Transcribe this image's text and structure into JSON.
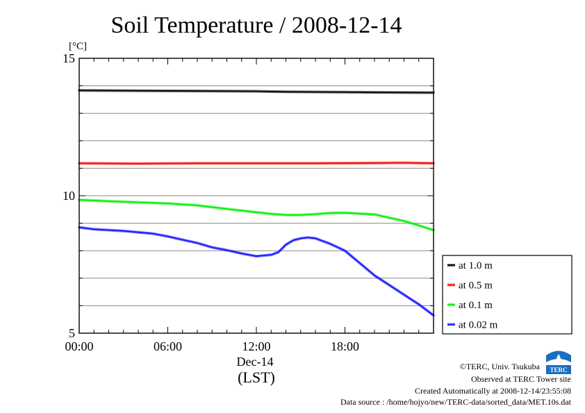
{
  "chart_data": {
    "type": "line",
    "title": "Soil Temperature / 2008-12-14",
    "ylabel": "[°C]",
    "xlabel_date": "Dec-14",
    "xlabel_tz": "(LST)",
    "x_range_hours": [
      0,
      24
    ],
    "ylim": [
      5,
      15
    ],
    "y_ticks": [
      {
        "value": 5,
        "label": "5"
      },
      {
        "value": 10,
        "label": "10"
      },
      {
        "value": 15,
        "label": "15"
      }
    ],
    "y_grid": [
      6,
      7,
      8,
      9,
      11,
      12,
      13,
      14
    ],
    "x_ticks": [
      {
        "hour": 0,
        "label": "00:00"
      },
      {
        "hour": 6,
        "label": "06:00"
      },
      {
        "hour": 12,
        "label": "12:00"
      },
      {
        "hour": 18,
        "label": "18:00"
      }
    ],
    "grid": true,
    "legend_position": "right",
    "series": [
      {
        "name": "at 1.0 m",
        "color": "#000000",
        "points": [
          [
            0,
            13.83
          ],
          [
            4,
            13.82
          ],
          [
            8,
            13.81
          ],
          [
            12,
            13.8
          ],
          [
            14,
            13.78
          ],
          [
            18,
            13.77
          ],
          [
            20,
            13.76
          ],
          [
            24,
            13.75
          ]
        ]
      },
      {
        "name": "at 0.5 m",
        "color": "#ff0000",
        "points": [
          [
            0,
            11.18
          ],
          [
            4,
            11.17
          ],
          [
            8,
            11.18
          ],
          [
            12,
            11.18
          ],
          [
            16,
            11.18
          ],
          [
            20,
            11.19
          ],
          [
            22,
            11.2
          ],
          [
            24,
            11.18
          ]
        ]
      },
      {
        "name": "at 0.1 m",
        "color": "#00ee00",
        "points": [
          [
            0,
            9.85
          ],
          [
            2,
            9.8
          ],
          [
            4,
            9.76
          ],
          [
            6,
            9.72
          ],
          [
            8,
            9.65
          ],
          [
            10,
            9.52
          ],
          [
            12,
            9.4
          ],
          [
            13,
            9.34
          ],
          [
            14,
            9.3
          ],
          [
            15,
            9.3
          ],
          [
            16,
            9.33
          ],
          [
            17,
            9.37
          ],
          [
            18,
            9.38
          ],
          [
            20,
            9.32
          ],
          [
            21,
            9.2
          ],
          [
            22,
            9.08
          ],
          [
            23,
            8.92
          ],
          [
            24,
            8.75
          ]
        ]
      },
      {
        "name": "at 0.02 m",
        "color": "#1010ff",
        "points": [
          [
            0,
            8.85
          ],
          [
            1,
            8.78
          ],
          [
            2,
            8.75
          ],
          [
            3,
            8.72
          ],
          [
            5,
            8.62
          ],
          [
            6,
            8.52
          ],
          [
            7,
            8.4
          ],
          [
            8,
            8.28
          ],
          [
            9,
            8.12
          ],
          [
            10,
            8.02
          ],
          [
            11,
            7.9
          ],
          [
            12,
            7.8
          ],
          [
            13,
            7.85
          ],
          [
            13.5,
            7.95
          ],
          [
            14,
            8.22
          ],
          [
            14.5,
            8.38
          ],
          [
            15,
            8.45
          ],
          [
            15.5,
            8.48
          ],
          [
            16,
            8.45
          ],
          [
            17,
            8.25
          ],
          [
            18,
            8.0
          ],
          [
            19,
            7.55
          ],
          [
            20,
            7.1
          ],
          [
            21,
            6.75
          ],
          [
            22,
            6.4
          ],
          [
            23,
            6.05
          ],
          [
            24,
            5.65
          ]
        ]
      }
    ]
  },
  "footer": {
    "copyright": "©TERC, Univ. Tsukuba",
    "observed": "Observed at TERC Tower site",
    "created": "Created Automatically at 2008-12-14/23:55:08",
    "source": "Data source : /home/hojyo/new/TERC-data/sorted_data/MET.10s.dat"
  },
  "logo": {
    "text": "TERC",
    "color": "#1a6fc0"
  }
}
